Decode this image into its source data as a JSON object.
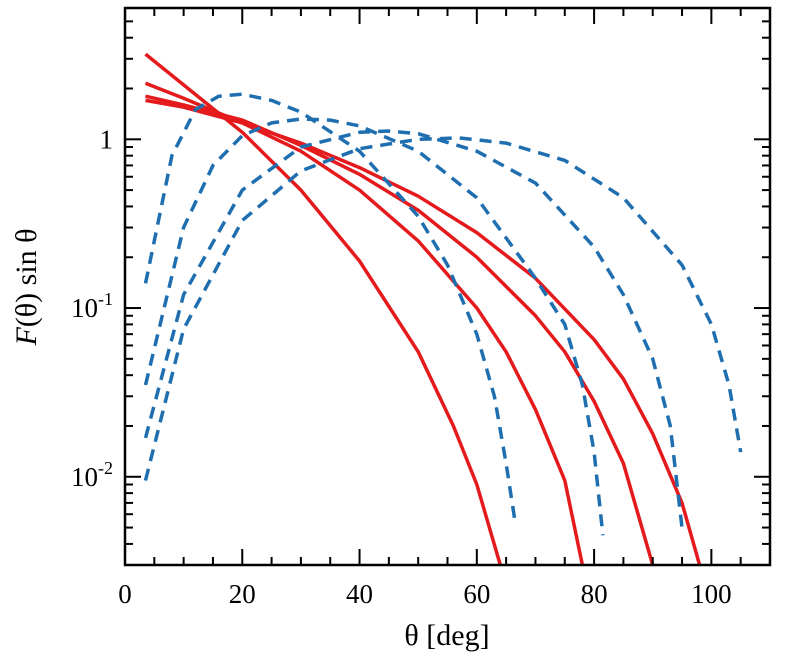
{
  "chart_data": {
    "type": "line",
    "title": "",
    "xlabel": "θ  [deg]",
    "ylabel_italic": "F",
    "ylabel_rest": "(θ)  sin θ",
    "xlim": [
      0,
      110
    ],
    "ylim": [
      0.003,
      6.0
    ],
    "y_scale": "log",
    "grid": false,
    "legend": "none",
    "x_ticks": [
      {
        "value": 0,
        "label": "0"
      },
      {
        "value": 20,
        "label": "20"
      },
      {
        "value": 40,
        "label": "40"
      },
      {
        "value": 60,
        "label": "60"
      },
      {
        "value": 80,
        "label": "80"
      },
      {
        "value": 100,
        "label": "100"
      }
    ],
    "y_ticks": [
      {
        "value": 0.01,
        "base": "10",
        "exp": "-2"
      },
      {
        "value": 0.1,
        "base": "10",
        "exp": "-1"
      },
      {
        "value": 1,
        "base": "1",
        "exp": ""
      }
    ],
    "colors": {
      "solid": "#e41a1c",
      "dashed": "#1f6fb0"
    },
    "series": [
      {
        "style": "solid",
        "points": [
          [
            3.5,
            3.2
          ],
          [
            10,
            2.1
          ],
          [
            20,
            1.1
          ],
          [
            30,
            0.5
          ],
          [
            40,
            0.19
          ],
          [
            50,
            0.055
          ],
          [
            56,
            0.02
          ],
          [
            60,
            0.009
          ],
          [
            64,
            0.003
          ]
        ]
      },
      {
        "style": "solid",
        "points": [
          [
            3.5,
            2.15
          ],
          [
            10,
            1.75
          ],
          [
            20,
            1.25
          ],
          [
            30,
            0.85
          ],
          [
            40,
            0.5
          ],
          [
            50,
            0.25
          ],
          [
            60,
            0.1
          ],
          [
            65,
            0.055
          ],
          [
            70,
            0.025
          ],
          [
            75,
            0.0095
          ],
          [
            78,
            0.003
          ]
        ]
      },
      {
        "style": "solid",
        "points": [
          [
            3.5,
            1.8
          ],
          [
            10,
            1.6
          ],
          [
            20,
            1.3
          ],
          [
            30,
            0.92
          ],
          [
            40,
            0.62
          ],
          [
            50,
            0.38
          ],
          [
            60,
            0.2
          ],
          [
            70,
            0.09
          ],
          [
            75,
            0.055
          ],
          [
            80,
            0.028
          ],
          [
            85,
            0.012
          ],
          [
            90,
            0.003
          ]
        ]
      },
      {
        "style": "solid",
        "points": [
          [
            3.5,
            1.7
          ],
          [
            10,
            1.55
          ],
          [
            20,
            1.25
          ],
          [
            30,
            0.95
          ],
          [
            40,
            0.68
          ],
          [
            50,
            0.46
          ],
          [
            60,
            0.28
          ],
          [
            70,
            0.15
          ],
          [
            80,
            0.065
          ],
          [
            85,
            0.038
          ],
          [
            90,
            0.018
          ],
          [
            95,
            0.007
          ],
          [
            98,
            0.003
          ]
        ]
      },
      {
        "style": "dashed",
        "points": [
          [
            3.5,
            0.14
          ],
          [
            8,
            0.8
          ],
          [
            12,
            1.5
          ],
          [
            16,
            1.8
          ],
          [
            20,
            1.85
          ],
          [
            25,
            1.7
          ],
          [
            30,
            1.45
          ],
          [
            40,
            0.85
          ],
          [
            50,
            0.35
          ],
          [
            55,
            0.18
          ],
          [
            60,
            0.07
          ],
          [
            63,
            0.03
          ],
          [
            65,
            0.012
          ],
          [
            66.5,
            0.0055
          ]
        ]
      },
      {
        "style": "dashed",
        "points": [
          [
            3.5,
            0.035
          ],
          [
            10,
            0.3
          ],
          [
            15,
            0.7
          ],
          [
            20,
            1.05
          ],
          [
            25,
            1.25
          ],
          [
            30,
            1.32
          ],
          [
            35,
            1.3
          ],
          [
            40,
            1.2
          ],
          [
            50,
            0.85
          ],
          [
            60,
            0.45
          ],
          [
            70,
            0.15
          ],
          [
            75,
            0.08
          ],
          [
            78,
            0.035
          ],
          [
            80,
            0.014
          ],
          [
            81.5,
            0.0045
          ]
        ]
      },
      {
        "style": "dashed",
        "points": [
          [
            3.5,
            0.017
          ],
          [
            10,
            0.12
          ],
          [
            20,
            0.5
          ],
          [
            30,
            0.9
          ],
          [
            40,
            1.1
          ],
          [
            45,
            1.12
          ],
          [
            50,
            1.08
          ],
          [
            60,
            0.85
          ],
          [
            70,
            0.55
          ],
          [
            80,
            0.23
          ],
          [
            85,
            0.12
          ],
          [
            90,
            0.05
          ],
          [
            93,
            0.02
          ],
          [
            95,
            0.005
          ]
        ]
      },
      {
        "style": "dashed",
        "points": [
          [
            3.5,
            0.0095
          ],
          [
            10,
            0.075
          ],
          [
            20,
            0.33
          ],
          [
            30,
            0.65
          ],
          [
            40,
            0.88
          ],
          [
            50,
            1.0
          ],
          [
            57,
            1.02
          ],
          [
            65,
            0.95
          ],
          [
            75,
            0.75
          ],
          [
            85,
            0.45
          ],
          [
            95,
            0.18
          ],
          [
            100,
            0.08
          ],
          [
            103,
            0.035
          ],
          [
            105,
            0.014
          ]
        ]
      }
    ]
  }
}
